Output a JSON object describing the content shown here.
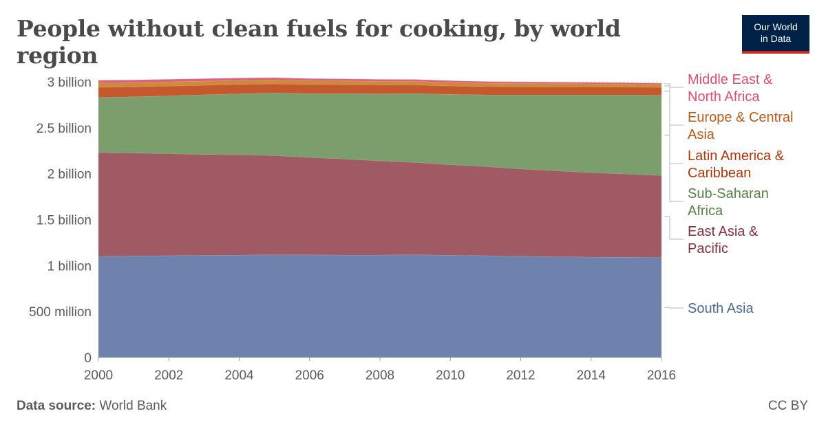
{
  "header": {
    "title": "People without clean fuels for cooking, by world region",
    "logo_line1": "Our World",
    "logo_line2": "in Data"
  },
  "footer": {
    "source_label": "Data source:",
    "source_value": "World Bank",
    "license": "CC BY"
  },
  "colors": {
    "South Asia": "#6d83ad",
    "East Asia & Pacific": "#a05a63",
    "Sub-Saharan Africa": "#7a9f6d",
    "Latin America & Caribbean": "#c6582e",
    "Europe & Central Asia": "#cf8a39",
    "Middle East & North Africa": "#d9637c"
  },
  "label_colors": {
    "South Asia": "#4c6a9c",
    "East Asia & Pacific": "#883039",
    "Sub-Saharan Africa": "#578145",
    "Latin America & Caribbean": "#b13507",
    "Europe & Central Asia": "#be5915",
    "Middle East & North Africa": "#e04d6f"
  },
  "chart_data": {
    "type": "area",
    "stacked": true,
    "title": "People without clean fuels for cooking, by world region",
    "x": [
      2000,
      2001,
      2002,
      2003,
      2004,
      2005,
      2006,
      2007,
      2008,
      2009,
      2010,
      2011,
      2012,
      2013,
      2014,
      2015,
      2016
    ],
    "x_ticks": [
      "2000",
      "2002",
      "2004",
      "2006",
      "2008",
      "2010",
      "2012",
      "2014",
      "2016"
    ],
    "x_tick_values": [
      2000,
      2002,
      2004,
      2006,
      2008,
      2010,
      2012,
      2014,
      2016
    ],
    "y_ticks": [
      "0",
      "500 million",
      "1 billion",
      "1.5 billion",
      "2 billion",
      "2.5 billion",
      "3 billion"
    ],
    "y_tick_values": [
      0,
      500000000,
      1000000000,
      1500000000,
      2000000000,
      2500000000,
      3000000000
    ],
    "ylim": [
      0,
      3000000000
    ],
    "grid": "horizontal dashed",
    "legend": "right, line labels",
    "series": [
      {
        "name": "South Asia",
        "label_lines": [
          "South Asia"
        ],
        "values": [
          1100000000,
          1105000000,
          1108000000,
          1112000000,
          1115000000,
          1118000000,
          1117000000,
          1115000000,
          1115000000,
          1118000000,
          1113000000,
          1108000000,
          1102000000,
          1097000000,
          1092000000,
          1090000000,
          1088000000
        ]
      },
      {
        "name": "East Asia & Pacific",
        "label_lines": [
          "East Asia &",
          "Pacific"
        ],
        "values": [
          1130000000,
          1120000000,
          1110000000,
          1097000000,
          1090000000,
          1080000000,
          1060000000,
          1045000000,
          1025000000,
          1005000000,
          985000000,
          970000000,
          950000000,
          935000000,
          920000000,
          907000000,
          893000000
        ]
      },
      {
        "name": "Sub-Saharan Africa",
        "label_lines": [
          "Sub-Saharan",
          "Africa"
        ],
        "values": [
          600000000,
          612000000,
          630000000,
          650000000,
          665000000,
          680000000,
          695000000,
          712000000,
          730000000,
          750000000,
          765000000,
          780000000,
          805000000,
          825000000,
          845000000,
          860000000,
          873000000
        ]
      },
      {
        "name": "Latin America & Caribbean",
        "label_lines": [
          "Latin America &",
          "Caribbean"
        ],
        "values": [
          110000000,
          108000000,
          106000000,
          104000000,
          102000000,
          100000000,
          98000000,
          97000000,
          95000000,
          93000000,
          92000000,
          90000000,
          89000000,
          88000000,
          87000000,
          86000000,
          85000000
        ]
      },
      {
        "name": "Europe & Central Asia",
        "label_lines": [
          "Europe & Central",
          "Asia"
        ],
        "values": [
          48000000,
          47000000,
          46000000,
          45000000,
          44000000,
          43000000,
          42000000,
          41000000,
          40000000,
          39000000,
          38000000,
          37000000,
          36000000,
          35000000,
          34000000,
          33000000,
          32000000
        ]
      },
      {
        "name": "Middle East & North Africa",
        "label_lines": [
          "Middle East &",
          "North Africa"
        ],
        "values": [
          30000000,
          29000000,
          28000000,
          27000000,
          26000000,
          25000000,
          24000000,
          23000000,
          22000000,
          21000000,
          20000000,
          19000000,
          18000000,
          17000000,
          16000000,
          15000000,
          14000000
        ]
      }
    ]
  }
}
